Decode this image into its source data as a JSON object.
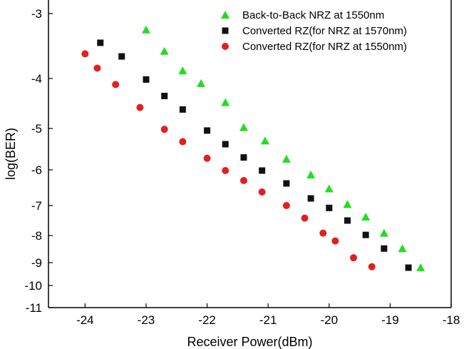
{
  "chart_data": {
    "type": "scatter",
    "title": "",
    "xlabel": "Receiver Power(dBm)",
    "ylabel": "log(BER)",
    "xlim": [
      -24.6,
      -18
    ],
    "ylim_note": "custom non-linear log(BER) axis",
    "x_ticks": [
      -24,
      -23,
      -22,
      -21,
      -20,
      -19,
      -18
    ],
    "y_ticks": [
      -3,
      -4,
      -5,
      -6,
      -7,
      -8,
      -9,
      -10,
      -11
    ],
    "grid": false,
    "legend_position": "top-right",
    "series": [
      {
        "name": "Back-to-Back NRZ at 1550nm",
        "marker": "triangle",
        "color": "#22dd22",
        "points": [
          [
            -23.0,
            -3.25
          ],
          [
            -22.7,
            -3.58
          ],
          [
            -22.4,
            -3.88
          ],
          [
            -22.1,
            -4.1
          ],
          [
            -21.7,
            -4.48
          ],
          [
            -21.4,
            -4.98
          ],
          [
            -21.05,
            -5.3
          ],
          [
            -20.7,
            -5.74
          ],
          [
            -20.3,
            -6.14
          ],
          [
            -20.0,
            -6.53
          ],
          [
            -19.7,
            -6.97
          ],
          [
            -19.4,
            -7.38
          ],
          [
            -19.1,
            -7.92
          ],
          [
            -18.8,
            -8.48
          ],
          [
            -18.5,
            -9.22
          ]
        ]
      },
      {
        "name": "Converted RZ(for NRZ at 1570nm)",
        "marker": "square",
        "color": "#111111",
        "points": [
          [
            -23.75,
            -3.45
          ],
          [
            -23.4,
            -3.66
          ],
          [
            -23.0,
            -4.02
          ],
          [
            -22.7,
            -4.35
          ],
          [
            -22.4,
            -4.62
          ],
          [
            -22.0,
            -5.05
          ],
          [
            -21.7,
            -5.38
          ],
          [
            -21.4,
            -5.7
          ],
          [
            -21.1,
            -6.02
          ],
          [
            -20.7,
            -6.38
          ],
          [
            -20.3,
            -6.8
          ],
          [
            -20.0,
            -7.08
          ],
          [
            -19.7,
            -7.5
          ],
          [
            -19.4,
            -7.98
          ],
          [
            -19.1,
            -8.48
          ],
          [
            -18.7,
            -9.22
          ]
        ]
      },
      {
        "name": "Converted RZ(for NRZ at 1550nm)",
        "marker": "circle",
        "color": "#e02020",
        "points": [
          [
            -24.0,
            -3.62
          ],
          [
            -23.8,
            -3.84
          ],
          [
            -23.5,
            -4.12
          ],
          [
            -23.1,
            -4.58
          ],
          [
            -22.7,
            -5.02
          ],
          [
            -22.4,
            -5.32
          ],
          [
            -22.0,
            -5.72
          ],
          [
            -21.7,
            -6.02
          ],
          [
            -21.4,
            -6.3
          ],
          [
            -21.1,
            -6.62
          ],
          [
            -20.7,
            -7.0
          ],
          [
            -20.4,
            -7.42
          ],
          [
            -20.1,
            -7.92
          ],
          [
            -19.9,
            -8.2
          ],
          [
            -19.6,
            -8.82
          ],
          [
            -19.3,
            -9.18
          ]
        ]
      }
    ]
  }
}
